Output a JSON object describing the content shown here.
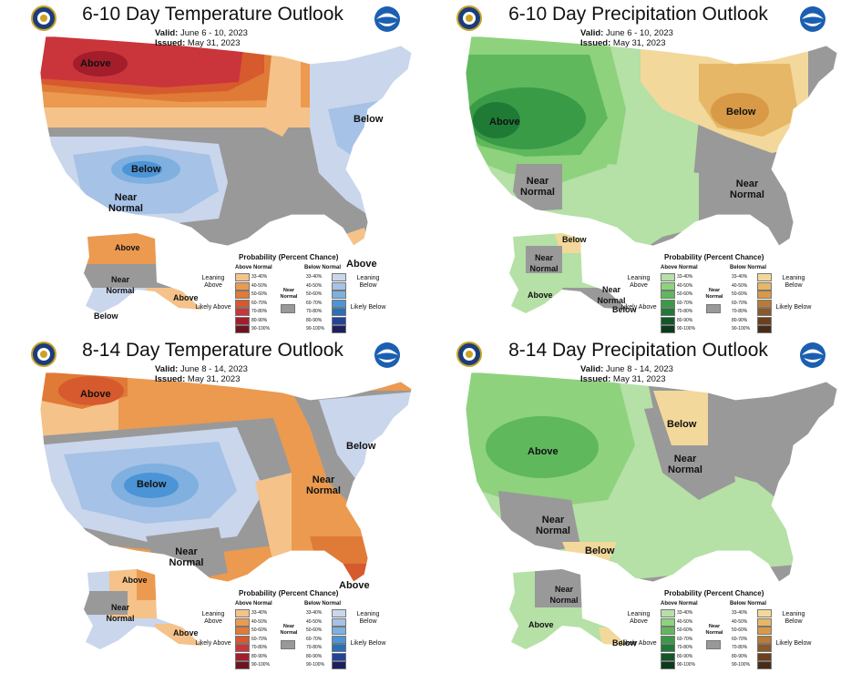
{
  "panels": [
    {
      "title": "6-10 Day Temperature Outlook",
      "valid_label": "Valid:",
      "valid_value": "June 6 - 10, 2023",
      "issued_label": "Issued:",
      "issued_value": "May 31, 2023",
      "map_labels": [
        "Above",
        "Below",
        "Below",
        "Near Normal",
        "Above",
        "Near Normal",
        "Above",
        "Below",
        "Above"
      ],
      "legend": {
        "title": "Probability (Percent Chance)",
        "left_header": "Above Normal",
        "right_header": "Below Normal",
        "near_label": "Near Normal",
        "leaning_left": "Leaning Above",
        "likely_left": "Likely Above",
        "leaning_right": "Leaning Below",
        "likely_right": "Likely Below",
        "ranges": [
          "33-40%",
          "40-50%",
          "50-60%",
          "60-70%",
          "70-80%",
          "80-90%",
          "90-100%"
        ],
        "left_colors": [
          "#f5c28a",
          "#eb9a50",
          "#e07a37",
          "#d65a2e",
          "#c9353a",
          "#a31d2b",
          "#6e1420"
        ],
        "right_colors": [
          "#c9d6ec",
          "#a6c2e6",
          "#7fb0df",
          "#4b94d6",
          "#2a6fb7",
          "#23439a",
          "#1e1e62"
        ]
      }
    },
    {
      "title": "6-10 Day Precipitation Outlook",
      "valid_label": "Valid:",
      "valid_value": "June 6 - 10, 2023",
      "issued_label": "Issued:",
      "issued_value": "May 31, 2023",
      "map_labels": [
        "Above",
        "Below",
        "Near Normal",
        "Near Normal",
        "Below",
        "Near Normal",
        "Above",
        "Near Normal",
        "Below"
      ],
      "legend": {
        "title": "Probability (Percent Chance)",
        "left_header": "Above Normal",
        "right_header": "Below Normal",
        "near_label": "Near Normal",
        "leaning_left": "Leaning Above",
        "likely_left": "Likely Above",
        "leaning_right": "Leaning Below",
        "likely_right": "Likely Below",
        "ranges": [
          "33-40%",
          "40-50%",
          "50-60%",
          "60-70%",
          "70-80%",
          "80-90%",
          "90-100%"
        ],
        "left_colors": [
          "#b5e0a6",
          "#8ed27d",
          "#5fb85c",
          "#3a9b47",
          "#1f7a35",
          "#12562a",
          "#0b3a1d"
        ],
        "right_colors": [
          "#f3d89b",
          "#e5b766",
          "#d89a46",
          "#b97b35",
          "#8a5a2a",
          "#6b4020",
          "#4a2b17"
        ]
      }
    },
    {
      "title": "8-14 Day Temperature Outlook",
      "valid_label": "Valid:",
      "valid_value": "June 8 - 14, 2023",
      "issued_label": "Issued:",
      "issued_value": "May 31, 2023",
      "map_labels": [
        "Above",
        "Below",
        "Below",
        "Near Normal",
        "Near Normal",
        "Above",
        "Above",
        "Near Normal",
        "Above"
      ],
      "legend": {
        "title": "Probability (Percent Chance)",
        "left_header": "Above Normal",
        "right_header": "Below Normal",
        "near_label": "Near Normal",
        "leaning_left": "Leaning Above",
        "likely_left": "Likely Above",
        "leaning_right": "Leaning Below",
        "likely_right": "Likely Below",
        "ranges": [
          "33-40%",
          "40-50%",
          "50-60%",
          "60-70%",
          "70-80%",
          "80-90%",
          "90-100%"
        ],
        "left_colors": [
          "#f5c28a",
          "#eb9a50",
          "#e07a37",
          "#d65a2e",
          "#c9353a",
          "#a31d2b",
          "#6e1420"
        ],
        "right_colors": [
          "#c9d6ec",
          "#a6c2e6",
          "#7fb0df",
          "#4b94d6",
          "#2a6fb7",
          "#23439a",
          "#1e1e62"
        ]
      }
    },
    {
      "title": "8-14 Day Precipitation Outlook",
      "valid_label": "Valid:",
      "valid_value": "June 8 - 14, 2023",
      "issued_label": "Issued:",
      "issued_value": "May 31, 2023",
      "map_labels": [
        "Above",
        "Below",
        "Near Normal",
        "Near Normal",
        "Below",
        "Near Normal",
        "Above",
        "Below"
      ],
      "legend": {
        "title": "Probability (Percent Chance)",
        "left_header": "Above Normal",
        "right_header": "Below Normal",
        "near_label": "Near Normal",
        "leaning_left": "Leaning Above",
        "likely_left": "Likely Above",
        "leaning_right": "Leaning Below",
        "likely_right": "Likely Below",
        "ranges": [
          "33-40%",
          "40-50%",
          "50-60%",
          "60-70%",
          "70-80%",
          "80-90%",
          "90-100%"
        ],
        "left_colors": [
          "#b5e0a6",
          "#8ed27d",
          "#5fb85c",
          "#3a9b47",
          "#1f7a35",
          "#12562a",
          "#0b3a1d"
        ],
        "right_colors": [
          "#f3d89b",
          "#e5b766",
          "#d89a46",
          "#b97b35",
          "#8a5a2a",
          "#6b4020",
          "#4a2b17"
        ]
      }
    }
  ],
  "colors": {
    "near_normal": "#999999",
    "background": "#ffffff"
  }
}
